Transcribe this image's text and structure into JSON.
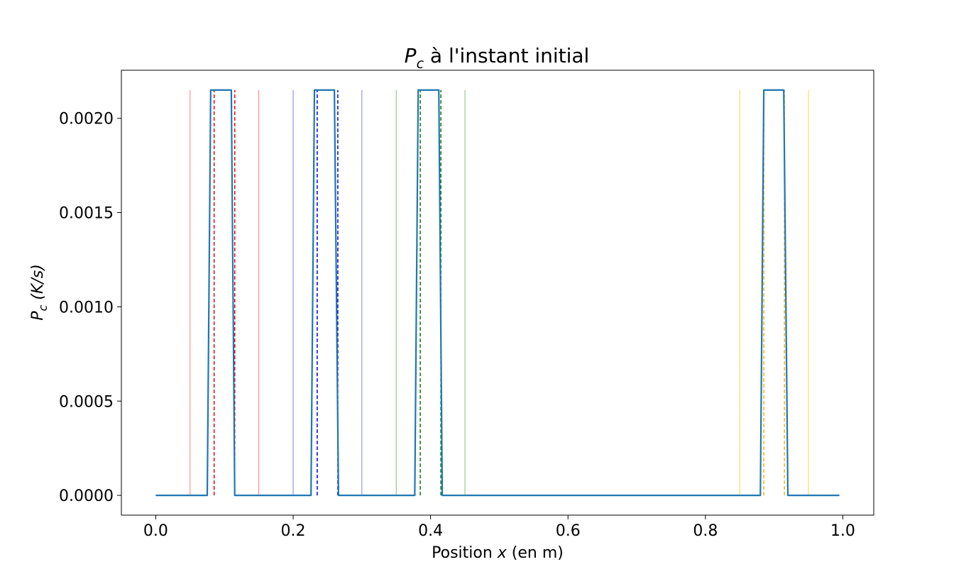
{
  "chart_data": {
    "type": "line",
    "title": {
      "symbol": "P",
      "subscript": "c",
      "text": " à l'instant initial"
    },
    "xlabel": {
      "prefix": "Position ",
      "var": "x",
      "suffix": " (en m)"
    },
    "ylabel": {
      "symbol": "P",
      "subscript": "c",
      "units": " (K/s)"
    },
    "xlim": [
      -0.05,
      1.045
    ],
    "ylim": [
      -0.000105,
      0.002255
    ],
    "x_ticks": [
      0.0,
      0.2,
      0.4,
      0.6,
      0.8,
      1.0
    ],
    "x_tick_labels": [
      "0.0",
      "0.2",
      "0.4",
      "0.6",
      "0.8",
      "1.0"
    ],
    "y_ticks": [
      0.0,
      0.0005,
      0.001,
      0.0015,
      0.002
    ],
    "y_tick_labels": [
      "0.0000",
      "0.0005",
      "0.0010",
      "0.0015",
      "0.0020"
    ],
    "grid": false,
    "series": [
      {
        "color": "#1f77b4",
        "x": [
          0.0,
          0.075,
          0.08,
          0.11,
          0.115,
          0.226,
          0.231,
          0.26,
          0.266,
          0.377,
          0.382,
          0.412,
          0.417,
          0.88,
          0.885,
          0.914,
          0.92,
          0.995
        ],
        "y": [
          0.0,
          0.0,
          0.00215,
          0.00215,
          0.0,
          0.0,
          0.00215,
          0.00215,
          0.0,
          0.0,
          0.00215,
          0.00215,
          0.0,
          0.0,
          0.00215,
          0.00215,
          0.0,
          0.0
        ]
      }
    ],
    "vlines": [
      {
        "x": 0.05,
        "color": "#ff7f7f",
        "style": "solid"
      },
      {
        "x": 0.085,
        "color": "#e00000",
        "style": "dashed"
      },
      {
        "x": 0.115,
        "color": "#e00000",
        "style": "dashed"
      },
      {
        "x": 0.15,
        "color": "#ff7f7f",
        "style": "solid"
      },
      {
        "x": 0.2,
        "color": "#8080e0",
        "style": "solid"
      },
      {
        "x": 0.235,
        "color": "#0000cc",
        "style": "dashed"
      },
      {
        "x": 0.265,
        "color": "#0000cc",
        "style": "dashed"
      },
      {
        "x": 0.3,
        "color": "#8080e0",
        "style": "solid"
      },
      {
        "x": 0.35,
        "color": "#80c080",
        "style": "solid"
      },
      {
        "x": 0.385,
        "color": "#007a00",
        "style": "dashed"
      },
      {
        "x": 0.415,
        "color": "#007a00",
        "style": "dashed"
      },
      {
        "x": 0.45,
        "color": "#80c080",
        "style": "solid"
      },
      {
        "x": 0.85,
        "color": "#ffd24d",
        "style": "solid"
      },
      {
        "x": 0.885,
        "color": "#ffb000",
        "style": "dashed"
      },
      {
        "x": 0.915,
        "color": "#ffb000",
        "style": "dashed"
      },
      {
        "x": 0.95,
        "color": "#ffd24d",
        "style": "solid"
      }
    ],
    "vline_ymax": 0.00215
  }
}
